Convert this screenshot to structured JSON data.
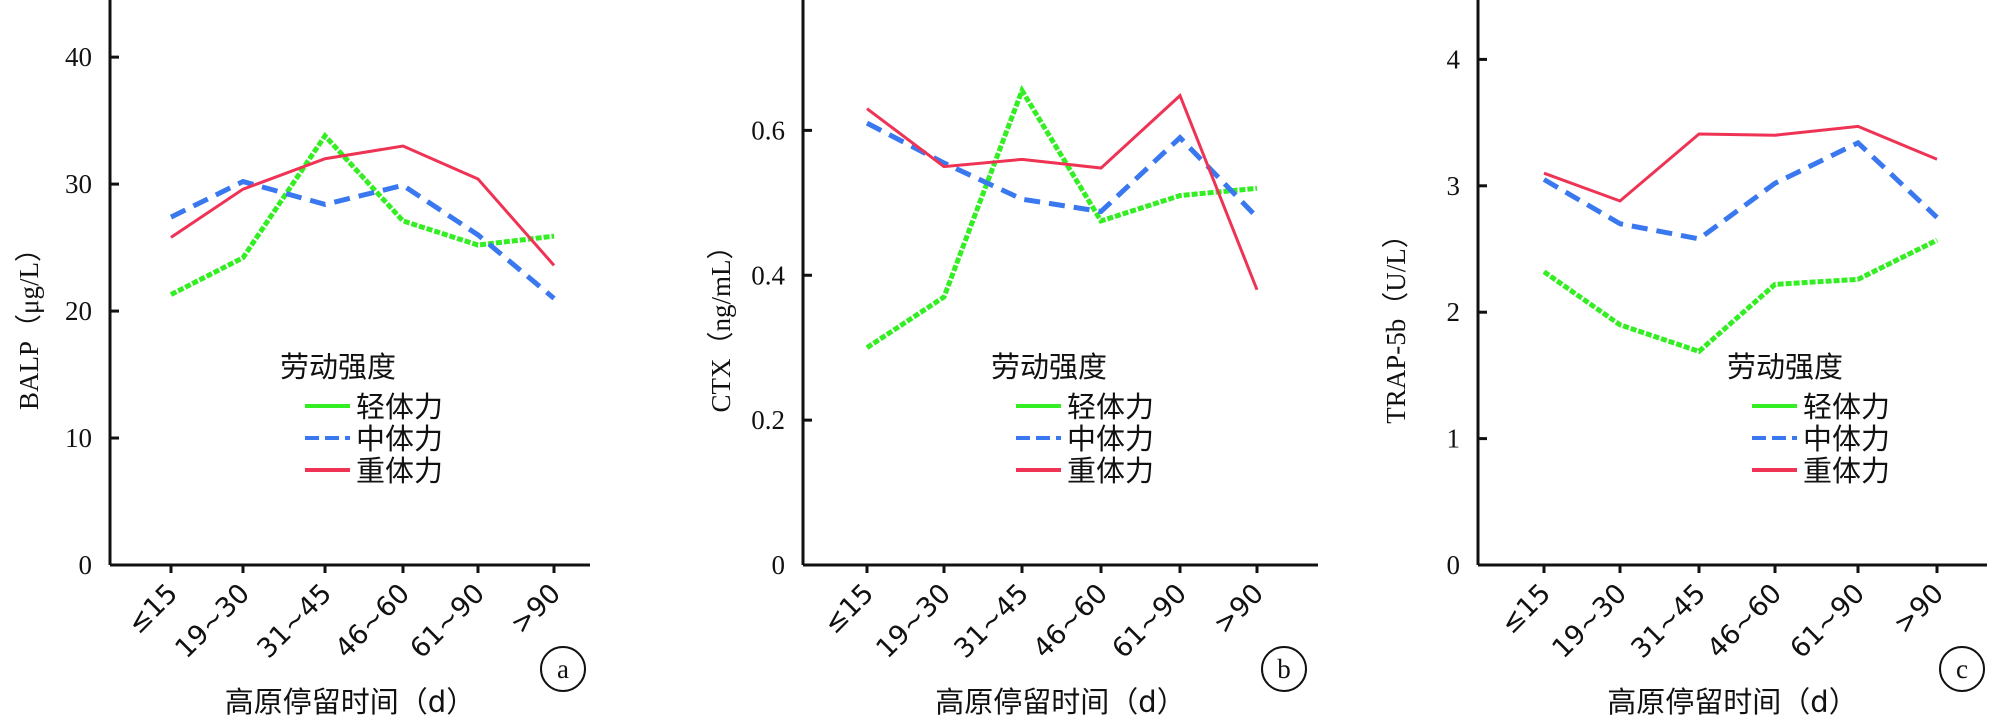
{
  "chart_data": [
    {
      "type": "line",
      "panel_label": "a",
      "ylabel": "BALP（μg/L）",
      "xlabel": "高原停留时间（d）",
      "categories": [
        "≤15",
        "19~30",
        "31~45",
        "46~60",
        "61~90",
        ">90"
      ],
      "yticks": [
        "0",
        "10",
        "20",
        "30",
        "40"
      ],
      "ytick_values": [
        0,
        10,
        20,
        30,
        40
      ],
      "ylim": [
        0,
        44.5
      ],
      "legend_title": "劳动强度",
      "legend_position": "center",
      "series": [
        {
          "name": "轻体力",
          "color": "#33ee22",
          "style": "dotted-thick",
          "values": [
            21.3,
            24.2,
            33.8,
            27.1,
            25.2,
            25.9
          ]
        },
        {
          "name": "中体力",
          "color": "#3a78f0",
          "style": "dashed",
          "values": [
            27.4,
            30.2,
            28.4,
            29.9,
            26.0,
            21.0
          ]
        },
        {
          "name": "重体力",
          "color": "#ee3355",
          "style": "solid",
          "values": [
            25.8,
            29.6,
            32.0,
            33.0,
            30.4,
            23.6
          ]
        }
      ]
    },
    {
      "type": "line",
      "panel_label": "b",
      "ylabel": "CTX（ng/mL）",
      "xlabel": "高原停留时间（d）",
      "categories": [
        "≤15",
        "19~30",
        "31~45",
        "46~60",
        "61~90",
        ">90"
      ],
      "yticks": [
        "0",
        "0.2",
        "0.4",
        "0.6"
      ],
      "ytick_values": [
        0,
        0.2,
        0.4,
        0.6
      ],
      "ylim": [
        0,
        0.78
      ],
      "legend_title": "劳动强度",
      "legend_position": "center",
      "series": [
        {
          "name": "轻体力",
          "color": "#33ee22",
          "style": "dotted-thick",
          "values": [
            0.3,
            0.37,
            0.655,
            0.475,
            0.51,
            0.52
          ]
        },
        {
          "name": "中体力",
          "color": "#3a78f0",
          "style": "dashed",
          "values": [
            0.61,
            0.555,
            0.505,
            0.488,
            0.59,
            0.48
          ]
        },
        {
          "name": "重体力",
          "color": "#ee3355",
          "style": "solid",
          "values": [
            0.63,
            0.55,
            0.56,
            0.548,
            0.648,
            0.38
          ]
        }
      ]
    },
    {
      "type": "line",
      "panel_label": "c",
      "ylabel": "TRAP-5b（U/L）",
      "xlabel": "高原停留时间（d）",
      "categories": [
        "≤15",
        "19~30",
        "31~45",
        "46~60",
        "61~90",
        ">90"
      ],
      "yticks": [
        "0",
        "1",
        "2",
        "3",
        "4"
      ],
      "ytick_values": [
        0,
        1,
        2,
        3,
        4
      ],
      "ylim": [
        0,
        4.47
      ],
      "legend_title": "劳动强度",
      "legend_position": "center-right",
      "series": [
        {
          "name": "轻体力",
          "color": "#33ee22",
          "style": "dotted-thick",
          "values": [
            2.32,
            1.9,
            1.69,
            2.22,
            2.26,
            2.57
          ]
        },
        {
          "name": "中体力",
          "color": "#3a78f0",
          "style": "dashed",
          "values": [
            3.05,
            2.7,
            2.58,
            3.02,
            3.34,
            2.75
          ]
        },
        {
          "name": "重体力",
          "color": "#ee3355",
          "style": "solid",
          "values": [
            3.1,
            2.88,
            3.41,
            3.4,
            3.47,
            3.21
          ]
        }
      ]
    }
  ]
}
